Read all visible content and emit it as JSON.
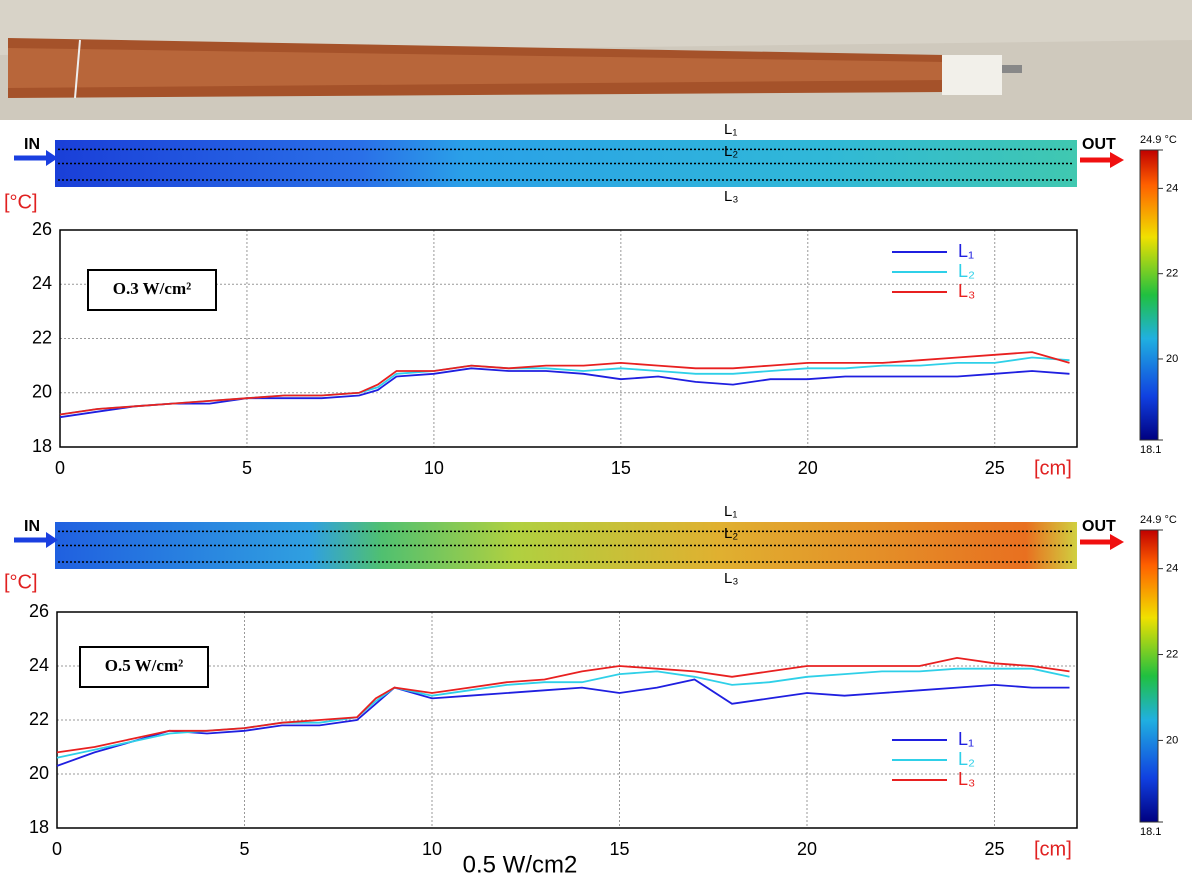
{
  "chart_data": [
    {
      "type": "line",
      "annotation": "O.3 W/cm²",
      "y_label": "[°C]",
      "x_label": "[cm]",
      "x": [
        0,
        1,
        2,
        3,
        4,
        5,
        6,
        7,
        8,
        8.5,
        9,
        10,
        11,
        12,
        13,
        14,
        15,
        16,
        17,
        18,
        19,
        20,
        21,
        22,
        23,
        24,
        25,
        26,
        27
      ],
      "series": [
        {
          "name": "L₁",
          "color": "#1f1fe0",
          "values": [
            19.1,
            19.3,
            19.5,
            19.6,
            19.6,
            19.8,
            19.8,
            19.8,
            19.9,
            20.1,
            20.6,
            20.7,
            20.9,
            20.8,
            20.8,
            20.7,
            20.5,
            20.6,
            20.4,
            20.3,
            20.5,
            20.5,
            20.6,
            20.6,
            20.6,
            20.6,
            20.7,
            20.8,
            20.7
          ]
        },
        {
          "name": "L₂",
          "color": "#2fd0e8",
          "values": [
            19.2,
            19.4,
            19.5,
            19.6,
            19.7,
            19.8,
            19.9,
            19.9,
            20.0,
            20.2,
            20.7,
            20.8,
            21.0,
            20.9,
            20.9,
            20.8,
            20.9,
            20.8,
            20.7,
            20.7,
            20.8,
            20.9,
            20.9,
            21.0,
            21.0,
            21.1,
            21.1,
            21.3,
            21.2
          ]
        },
        {
          "name": "L₃",
          "color": "#e82020",
          "values": [
            19.2,
            19.4,
            19.5,
            19.6,
            19.7,
            19.8,
            19.9,
            19.9,
            20.0,
            20.3,
            20.8,
            20.8,
            21.0,
            20.9,
            21.0,
            21.0,
            21.1,
            21.0,
            20.9,
            20.9,
            21.0,
            21.1,
            21.1,
            21.1,
            21.2,
            21.3,
            21.4,
            21.5,
            21.1
          ]
        }
      ],
      "xlim": [
        0,
        27.2
      ],
      "xticks": [
        0,
        5,
        10,
        15,
        20,
        25
      ],
      "ylim": [
        18,
        26
      ],
      "yticks": [
        18,
        20,
        22,
        24,
        26
      ],
      "grid": true,
      "legend": "upper right"
    },
    {
      "type": "line",
      "annotation": "O.5 W/cm²",
      "y_label": "[°C]",
      "x_label": "[cm]",
      "x": [
        0,
        1,
        2,
        3,
        4,
        5,
        6,
        7,
        8,
        8.5,
        9,
        10,
        11,
        12,
        13,
        14,
        15,
        16,
        17,
        18,
        19,
        20,
        21,
        22,
        23,
        24,
        25,
        26,
        27
      ],
      "series": [
        {
          "name": "L₁",
          "color": "#1f1fe0",
          "values": [
            20.3,
            20.8,
            21.2,
            21.6,
            21.5,
            21.6,
            21.8,
            21.8,
            22.0,
            22.6,
            23.2,
            22.8,
            22.9,
            23.0,
            23.1,
            23.2,
            23.0,
            23.2,
            23.5,
            22.6,
            22.8,
            23.0,
            22.9,
            23.0,
            23.1,
            23.2,
            23.3,
            23.2,
            23.2
          ]
        },
        {
          "name": "L₂",
          "color": "#2fd0e8",
          "values": [
            20.6,
            20.9,
            21.2,
            21.5,
            21.6,
            21.7,
            21.9,
            21.9,
            22.1,
            22.7,
            23.2,
            22.9,
            23.1,
            23.3,
            23.4,
            23.4,
            23.7,
            23.8,
            23.6,
            23.3,
            23.4,
            23.6,
            23.7,
            23.8,
            23.8,
            23.9,
            23.9,
            23.9,
            23.6
          ]
        },
        {
          "name": "L₃",
          "color": "#e82020",
          "values": [
            20.8,
            21.0,
            21.3,
            21.6,
            21.6,
            21.7,
            21.9,
            22.0,
            22.1,
            22.8,
            23.2,
            23.0,
            23.2,
            23.4,
            23.5,
            23.8,
            24.0,
            23.9,
            23.8,
            23.6,
            23.8,
            24.0,
            24.0,
            24.0,
            24.0,
            24.3,
            24.1,
            24.0,
            23.8
          ]
        }
      ],
      "xlim": [
        0,
        27.2
      ],
      "xticks": [
        0,
        5,
        10,
        15,
        20,
        25
      ],
      "ylim": [
        18,
        26
      ],
      "yticks": [
        18,
        20,
        22,
        24,
        26
      ],
      "grid": true,
      "legend": "lower right"
    }
  ],
  "thermal_maps": [
    {
      "inlet": "IN",
      "outlet": "OUT",
      "lines": [
        "L₁",
        "L₂",
        "L₃"
      ],
      "colorbar": {
        "range": [
          18.1,
          24.9
        ],
        "ticks": [
          18.1,
          20,
          22,
          24,
          {
            "value": 24.9,
            "label": "24.9 °C"
          }
        ]
      }
    },
    {
      "inlet": "IN",
      "outlet": "OUT",
      "lines": [
        "L₁",
        "L₂",
        "L₃"
      ],
      "colorbar": {
        "range": [
          18.1,
          24.9
        ],
        "ticks": [
          18.1,
          20,
          22,
          24,
          {
            "value": 24.9,
            "label": "24.9 °C"
          }
        ]
      }
    }
  ],
  "caption": "0.5 W/cm2"
}
